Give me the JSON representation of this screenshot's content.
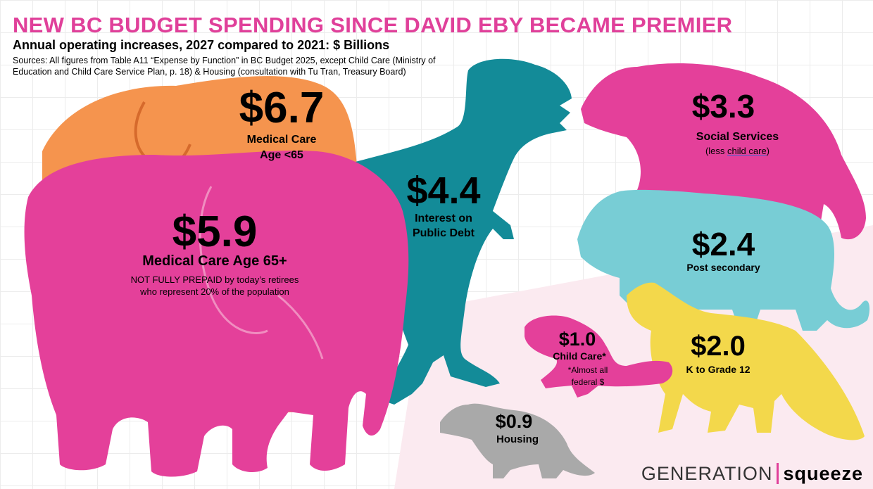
{
  "title": "NEW BC BUDGET SPENDING SINCE DAVID EBY BECAME PREMIER",
  "subtitle": "Annual operating increases, 2027 compared to 2021: $ Billions",
  "sources": "Sources: All figures from Table A11 “Expense by Function” in BC Budget 2025, except Child Care (Ministry of Education and Child Care Service Plan, p. 18) & Housing (consultation with Tu Tran, Treasury Board)",
  "colors": {
    "title": "#e0409a",
    "orange": "#f5944e",
    "pink": "#e4409a",
    "teal": "#138b98",
    "light_teal": "#78cdd5",
    "yellow": "#f3d84b",
    "gray": "#a9a9a9",
    "blush": "#fbeaf0"
  },
  "chart_data": {
    "type": "bar",
    "title": "NEW BC BUDGET SPENDING SINCE DAVID EBY BECAME PREMIER",
    "subtitle": "Annual operating increases, 2027 compared to 2021: $ Billions",
    "categories": [
      "Medical Care Age <65",
      "Medical Care Age 65+",
      "Interest on Public Debt",
      "Social Services",
      "Post secondary",
      "K to Grade 12",
      "Child Care*",
      "Housing"
    ],
    "values": [
      6.7,
      5.9,
      4.4,
      3.3,
      2.4,
      2.0,
      1.0,
      0.9
    ],
    "icons": [
      "elephant",
      "elephant",
      "t-rex",
      "bear",
      "cougar",
      "fox",
      "squirrel",
      "raccoon"
    ]
  },
  "items": {
    "medical_lt65": {
      "amount": "$6.7",
      "label_1": "Medical Care",
      "label_2": "Age <65"
    },
    "medical_65": {
      "amount": "$5.9",
      "label": "Medical Care Age 65+",
      "note_1": "NOT FULLY PREPAID by today’s retirees",
      "note_2": "who represent 20% of the population"
    },
    "interest": {
      "amount": "$4.4",
      "label_1": "Interest on",
      "label_2": "Public Debt"
    },
    "social": {
      "amount": "$3.3",
      "label": "Social Services",
      "note_pre": "(less ",
      "note_link": "child care",
      "note_post": ")"
    },
    "post_secondary": {
      "amount": "$2.4",
      "label": "Post secondary"
    },
    "k12": {
      "amount": "$2.0",
      "label": "K to Grade 12"
    },
    "child_care": {
      "amount": "$1.0",
      "label": "Child Care*",
      "note_1": "*Almost all",
      "note_2": "federal $"
    },
    "housing": {
      "amount": "$0.9",
      "label": "Housing"
    }
  },
  "logo": {
    "part1": "GENERATION",
    "part2": "squeeze"
  }
}
